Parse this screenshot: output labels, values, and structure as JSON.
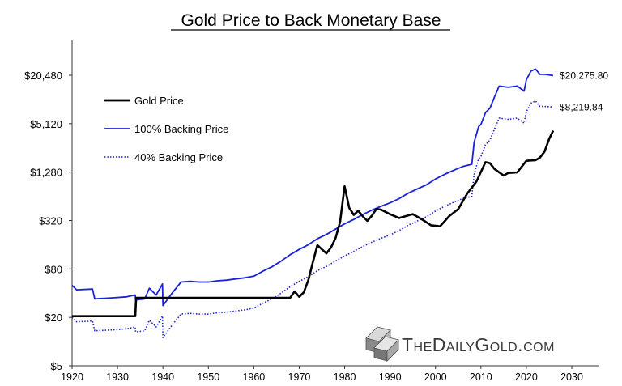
{
  "chart_data": {
    "type": "line",
    "title": "Gold Price to Back Monetary Base",
    "xlabel": "",
    "ylabel": "",
    "y_scale": "log2",
    "xlim": [
      1920,
      2035
    ],
    "ylim": [
      5,
      30000
    ],
    "x_ticks": [
      1920,
      1930,
      1940,
      1950,
      1960,
      1970,
      1980,
      1990,
      2000,
      2010,
      2020,
      2030
    ],
    "x_tick_labels": [
      "1920",
      "1930",
      "1940",
      "1950",
      "1960",
      "1970",
      "1980",
      "1990",
      "2000",
      "2010",
      "2020",
      "2030"
    ],
    "y_ticks": [
      5,
      20,
      80,
      320,
      1280,
      5120,
      20480
    ],
    "y_tick_labels": [
      "$5",
      "$20",
      "$80",
      "$320",
      "$1,280",
      "$5,120",
      "$20,480"
    ],
    "grid": false,
    "legend_position": "top-left",
    "series": [
      {
        "name": "Gold Price",
        "color": "#000000",
        "style": "solid",
        "end_label": "",
        "x": [
          1920,
          1933.9,
          1934.1,
          1968,
          1969,
          1970,
          1971,
          1972,
          1973,
          1974,
          1975,
          1976,
          1977,
          1978,
          1979,
          1980,
          1981,
          1982,
          1983,
          1984,
          1985,
          1986,
          1987,
          1988,
          1990,
          1992,
          1995,
          1997,
          1999,
          2001,
          2003,
          2005,
          2007,
          2009,
          2011,
          2012,
          2013,
          2015,
          2016,
          2018,
          2020,
          2022,
          2023,
          2024,
          2025,
          2025.9
        ],
        "y": [
          20.67,
          20.67,
          35,
          35,
          42,
          36,
          41,
          58,
          97,
          158,
          140,
          125,
          148,
          193,
          307,
          850,
          460,
          376,
          424,
          360,
          317,
          368,
          446,
          437,
          383,
          344,
          384,
          331,
          279,
          271,
          363,
          444,
          695,
          972,
          1700,
          1650,
          1400,
          1160,
          1250,
          1270,
          1770,
          1800,
          1940,
          2300,
          3300,
          4200
        ]
      },
      {
        "name": "100% Backing Price",
        "color": "#1a22d6",
        "style": "solid",
        "end_label": "$20,275.80",
        "x": [
          1920,
          1921,
          1924.5,
          1925,
          1929,
          1932,
          1933.9,
          1934,
          1936,
          1937,
          1938.5,
          1939.9,
          1940,
          1942,
          1944,
          1946,
          1948,
          1950,
          1952,
          1954,
          1956,
          1958,
          1960,
          1962,
          1964,
          1966,
          1968,
          1970,
          1972,
          1974,
          1976,
          1978,
          1980,
          1982,
          1984,
          1986,
          1988,
          1990,
          1992,
          1994,
          1996,
          1998,
          2000,
          2002,
          2004,
          2006,
          2008,
          2008.5,
          2009.5,
          2010,
          2011,
          2012,
          2013,
          2014,
          2016,
          2018,
          2019.5,
          2020,
          2021,
          2022,
          2023,
          2024,
          2025.9
        ],
        "y": [
          50,
          44,
          45,
          34,
          35,
          36,
          38,
          33,
          34,
          46,
          38,
          52,
          28,
          40,
          55,
          56,
          55,
          55,
          57,
          58,
          60,
          62,
          65,
          75,
          85,
          100,
          120,
          140,
          160,
          190,
          215,
          250,
          290,
          330,
          380,
          430,
          480,
          530,
          600,
          700,
          790,
          890,
          1050,
          1200,
          1350,
          1500,
          1600,
          3000,
          4700,
          5000,
          7000,
          8000,
          11000,
          15000,
          14500,
          15000,
          13000,
          18000,
          23000,
          24500,
          21000,
          21000,
          20275.8
        ]
      },
      {
        "name": "40% Backing Price",
        "color": "#1a22d6",
        "style": "dotted",
        "end_label": "$8,219.84",
        "x": [
          1920,
          1921,
          1924.5,
          1925,
          1929,
          1932,
          1933.9,
          1934,
          1936,
          1937,
          1938.5,
          1939.9,
          1940,
          1942,
          1944,
          1946,
          1948,
          1950,
          1952,
          1954,
          1956,
          1958,
          1960,
          1962,
          1964,
          1966,
          1968,
          1970,
          1972,
          1974,
          1976,
          1978,
          1980,
          1982,
          1984,
          1986,
          1988,
          1990,
          1992,
          1994,
          1996,
          1998,
          2000,
          2002,
          2004,
          2006,
          2008,
          2008.5,
          2009.5,
          2010,
          2011,
          2012,
          2013,
          2014,
          2016,
          2018,
          2019.5,
          2020,
          2021,
          2022,
          2023,
          2024,
          2025.9
        ],
        "y": [
          20,
          17.6,
          18,
          13.6,
          14,
          14.4,
          15.2,
          13.2,
          13.6,
          18.4,
          15.2,
          20.8,
          11.2,
          16,
          22,
          22.4,
          22,
          22,
          22.8,
          23.2,
          24,
          24.8,
          26,
          30,
          34,
          40,
          48,
          56,
          64,
          76,
          86,
          100,
          116,
          132,
          152,
          172,
          192,
          212,
          240,
          280,
          316,
          356,
          420,
          480,
          540,
          600,
          640,
          1200,
          1880,
          2000,
          2800,
          3200,
          4400,
          6000,
          5800,
          6000,
          5200,
          7200,
          9200,
          9800,
          8400,
          8400,
          8219.84
        ]
      }
    ]
  },
  "watermark": {
    "text": "TheDailyGold.com",
    "logo_icon": "gold-bars-icon"
  }
}
